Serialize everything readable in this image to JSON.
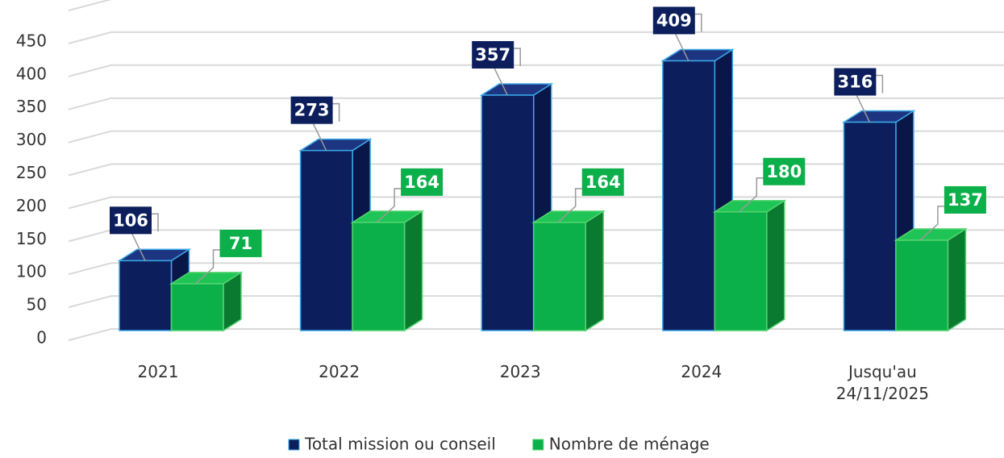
{
  "chart_data": {
    "type": "bar3d",
    "categories": [
      "2021",
      "2022",
      "2023",
      "2024",
      "Jusqu'au 24/11/2025"
    ],
    "series": [
      {
        "name": "Total mission ou conseil",
        "color": "#0c1f5c",
        "values": [
          106,
          273,
          357,
          409,
          316
        ]
      },
      {
        "name": "Nombre de ménage",
        "color": "#0bb04a",
        "values": [
          71,
          164,
          164,
          180,
          137
        ]
      }
    ],
    "ylim": [
      0,
      500
    ],
    "yticks": [
      0,
      50,
      100,
      150,
      200,
      250,
      300,
      350,
      400,
      450
    ],
    "grid": true,
    "legend": "bottom"
  }
}
